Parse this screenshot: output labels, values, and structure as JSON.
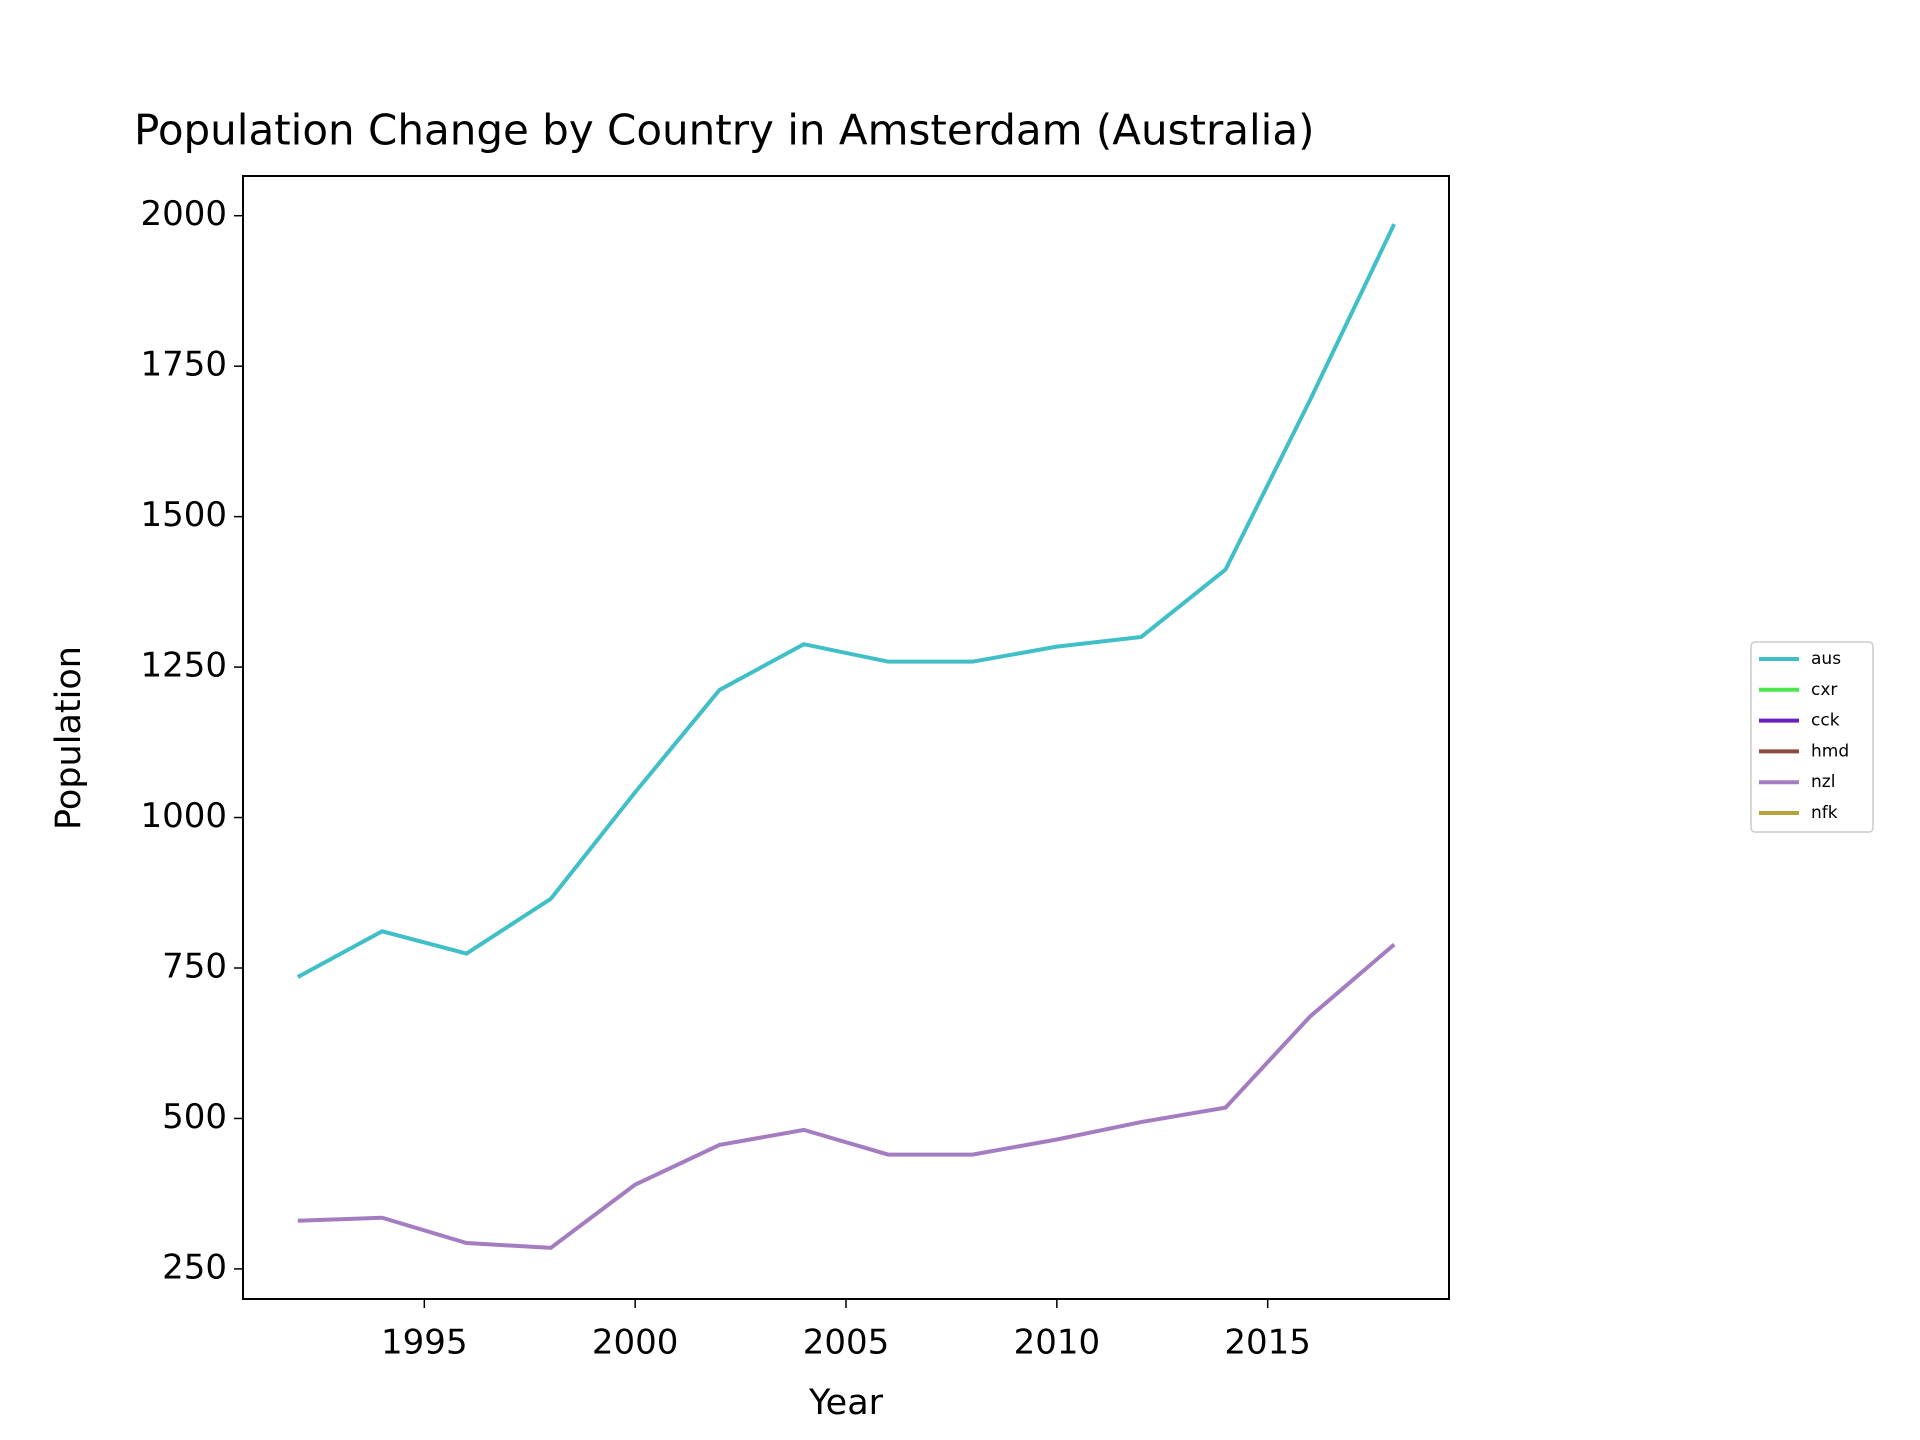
{
  "chart_data": {
    "type": "line",
    "title": "Population Change by Country in Amsterdam (Australia)",
    "x_label": "Year",
    "y_label": "Population",
    "x": [
      1992,
      1994,
      1996,
      1998,
      2000,
      2002,
      2004,
      2006,
      2008,
      2010,
      2012,
      2014,
      2016,
      2018
    ],
    "series": [
      {
        "name": "aus",
        "color": "#40bfc8",
        "values": [
          735,
          811,
          774,
          865,
          1042,
          1212,
          1288,
          1259,
          1259,
          1284,
          1300,
          1412,
          1693,
          1986
        ]
      },
      {
        "name": "cxr",
        "color": "#4de64d",
        "values": [
          null,
          null,
          null,
          null,
          null,
          null,
          null,
          null,
          null,
          null,
          null,
          null,
          null,
          null
        ]
      },
      {
        "name": "cck",
        "color": "#6a1fc2",
        "values": [
          null,
          null,
          null,
          null,
          null,
          null,
          null,
          null,
          null,
          null,
          null,
          null,
          null,
          null
        ]
      },
      {
        "name": "hmd",
        "color": "#8c4a42",
        "values": [
          null,
          null,
          null,
          null,
          null,
          null,
          null,
          null,
          null,
          null,
          null,
          null,
          null,
          null
        ]
      },
      {
        "name": "nzl",
        "color": "#a47cc2",
        "values": [
          330,
          335,
          293,
          285,
          390,
          456,
          481,
          440,
          440,
          465,
          494,
          518,
          669,
          789
        ]
      },
      {
        "name": "nfk",
        "color": "#b8a23a",
        "values": [
          null,
          null,
          null,
          null,
          null,
          null,
          null,
          null,
          null,
          null,
          null,
          null,
          null,
          null
        ]
      }
    ],
    "xlim": [
      1990.7,
      2019.3
    ],
    "xticks": [
      1995,
      2000,
      2005,
      2010,
      2015
    ],
    "ylim": [
      200,
      2066
    ],
    "yticks": [
      250,
      500,
      750,
      1000,
      1250,
      1500,
      1750,
      2000
    ],
    "legend": "right"
  }
}
